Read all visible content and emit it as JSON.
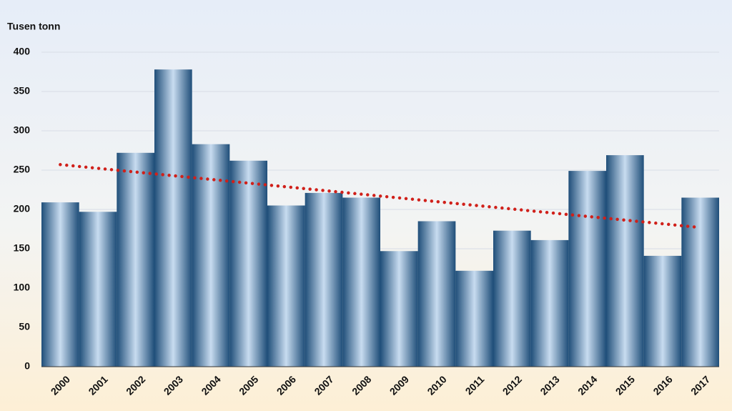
{
  "chart_data": {
    "type": "bar",
    "y_axis_label": "Tusen tonn",
    "categories": [
      "2000",
      "2001",
      "2002",
      "2003",
      "2004",
      "2005",
      "2006",
      "2007",
      "2008",
      "2009",
      "2010",
      "2011",
      "2012",
      "2013",
      "2014",
      "2015",
      "2016",
      "2017"
    ],
    "values": [
      209,
      197,
      272,
      378,
      283,
      262,
      205,
      221,
      215,
      147,
      185,
      122,
      173,
      161,
      249,
      269,
      141,
      215
    ],
    "color": "#1f4e79",
    "ylim": [
      0,
      400
    ],
    "yticks": [
      0,
      50,
      100,
      150,
      200,
      250,
      300,
      350,
      400
    ],
    "grid": true,
    "trend": {
      "x": [
        "2000",
        "2017"
      ],
      "values": [
        257,
        177
      ],
      "color": "#d0201a"
    }
  }
}
